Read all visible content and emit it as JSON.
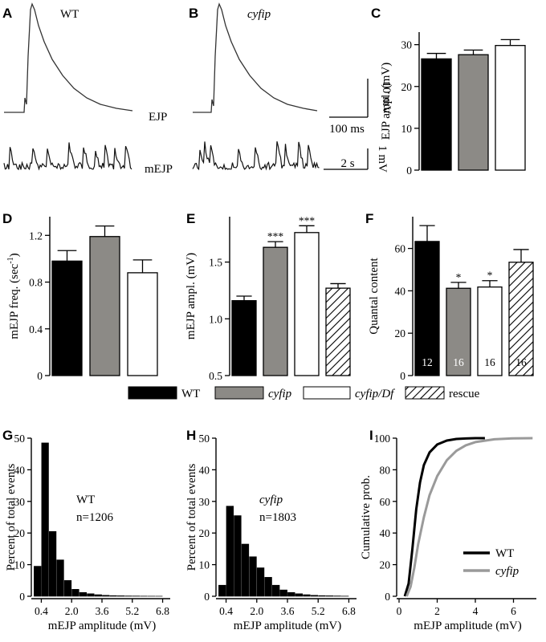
{
  "panel_labels": {
    "A": "A",
    "B": "B",
    "C": "C",
    "D": "D",
    "E": "E",
    "F": "F",
    "G": "G",
    "H": "H",
    "I": "I"
  },
  "colors": {
    "WT": "#000000",
    "cyfip": "#8c8a86",
    "cyfip_Df": "#ffffff",
    "rescue": "hatched",
    "wt_line": "#000000",
    "cyfip_line": "#9a9a9a"
  },
  "traces": {
    "A_label": "WT",
    "B_label": "cyfip",
    "ejp_label": "EJP",
    "mejp_label": "mEJP",
    "scalebar_ejp": {
      "voltage": "10 mV",
      "time": "100 ms"
    },
    "scalebar_mejp": {
      "voltage": "1 mV",
      "time": "2 s"
    }
  },
  "legend": {
    "items": [
      "WT",
      "cyfip",
      "cyfip/Df",
      "rescue"
    ]
  },
  "chart_data": [
    {
      "id": "C",
      "type": "bar",
      "categories": [
        "WT",
        "cyfip",
        "cyfip/Df"
      ],
      "values": [
        26.6,
        27.6,
        29.8
      ],
      "errors": [
        1.3,
        1.1,
        1.4
      ],
      "fills": [
        "#000000",
        "#8c8a86",
        "#ffffff"
      ],
      "ylabel": "EJP ampl. (mV)",
      "ylim": [
        0,
        33
      ],
      "yticks": [
        0,
        10,
        20,
        30
      ],
      "ytick_labels": [
        "0",
        "10",
        "20",
        "30"
      ]
    },
    {
      "id": "D",
      "type": "bar",
      "categories": [
        "WT",
        "cyfip",
        "cyfip/Df"
      ],
      "values": [
        0.98,
        1.19,
        0.88
      ],
      "errors": [
        0.09,
        0.09,
        0.11
      ],
      "fills": [
        "#000000",
        "#8c8a86",
        "#ffffff"
      ],
      "ylabel": "mEJP freq. (sec-1)",
      "ylim": [
        0,
        1.36
      ],
      "yticks": [
        0,
        0.4,
        0.8,
        1.2
      ],
      "ytick_labels": [
        "0",
        "0.4",
        "0.8",
        "1.2"
      ]
    },
    {
      "id": "E",
      "type": "bar",
      "categories": [
        "WT",
        "cyfip",
        "cyfip/Df",
        "rescue"
      ],
      "values": [
        1.16,
        1.63,
        1.76,
        1.27
      ],
      "errors": [
        0.04,
        0.05,
        0.06,
        0.04
      ],
      "fills": [
        "#000000",
        "#8c8a86",
        "#ffffff",
        "hatched"
      ],
      "significance": [
        "",
        "***",
        "***",
        ""
      ],
      "ylabel": "mEJP ampl. (mV)",
      "ylim": [
        0.5,
        1.9
      ],
      "yticks": [
        0.5,
        1.0,
        1.5
      ],
      "ytick_labels": [
        "0.5",
        "1.0",
        "1.5"
      ]
    },
    {
      "id": "F",
      "type": "bar",
      "categories": [
        "WT",
        "cyfip",
        "cyfip/Df",
        "rescue"
      ],
      "values": [
        63.3,
        41.2,
        41.8,
        53.5
      ],
      "errors": [
        7.5,
        2.8,
        3.0,
        6.0
      ],
      "fills": [
        "#000000",
        "#8c8a86",
        "#ffffff",
        "hatched"
      ],
      "significance": [
        "",
        "*",
        "*",
        ""
      ],
      "n_labels": [
        "12",
        "16",
        "16",
        "16"
      ],
      "ylabel": "Quantal content",
      "ylim": [
        0,
        75
      ],
      "yticks": [
        0,
        20,
        40,
        60
      ],
      "ytick_labels": [
        "0",
        "20",
        "40",
        "60"
      ]
    },
    {
      "id": "G",
      "type": "histogram",
      "series_label": "WT",
      "n_text": "n=1206",
      "bin_start": 0.0,
      "bin_width": 0.4,
      "values": [
        9.5,
        48.5,
        20.5,
        11.5,
        5.0,
        2.2,
        1.2,
        0.8,
        0.5,
        0.3,
        0.2,
        0.15,
        0.1,
        0.08,
        0.05,
        0.03,
        0.02
      ],
      "xlabel": "mEJP amplitude (mV)",
      "ylabel": "Percent of total events",
      "xlim": [
        0.0,
        7.2
      ],
      "ylim": [
        0,
        50
      ],
      "xticks": [
        0.4,
        2.0,
        3.6,
        5.2,
        6.8
      ],
      "xtick_labels": [
        "0.4",
        "2.0",
        "3.6",
        "5.2",
        "6.8"
      ],
      "yticks": [
        0,
        10,
        20,
        30,
        40,
        50
      ],
      "ytick_labels": [
        "0",
        "10",
        "20",
        "30",
        "40",
        "50"
      ]
    },
    {
      "id": "H",
      "type": "histogram",
      "series_label": "cyfip",
      "n_text": "n=1803",
      "bin_start": 0.0,
      "bin_width": 0.4,
      "values": [
        3.5,
        28.5,
        25.5,
        16.5,
        12.5,
        9.0,
        6.0,
        3.5,
        2.0,
        1.2,
        0.8,
        0.5,
        0.3,
        0.2,
        0.15,
        0.1,
        0.05
      ],
      "xlabel": "mEJP amplitude (mV)",
      "ylabel": "Percent of total events",
      "xlim": [
        0.0,
        7.2
      ],
      "ylim": [
        0,
        50
      ],
      "xticks": [
        0.4,
        2.0,
        3.6,
        5.2,
        6.8
      ],
      "xtick_labels": [
        "0.4",
        "2.0",
        "3.6",
        "5.2",
        "6.8"
      ],
      "yticks": [
        0,
        10,
        20,
        30,
        40,
        50
      ],
      "ytick_labels": [
        "0",
        "10",
        "20",
        "30",
        "40",
        "50"
      ]
    },
    {
      "id": "I",
      "type": "line",
      "xlabel": "mEJP amplitude (mV)",
      "ylabel": "Cumulative prob.",
      "xlim": [
        0,
        7.2
      ],
      "ylim": [
        0,
        100
      ],
      "xticks": [
        0,
        2,
        4,
        6
      ],
      "xtick_labels": [
        "0",
        "2",
        "4",
        "6"
      ],
      "yticks": [
        0,
        20,
        40,
        60,
        80,
        100
      ],
      "ytick_labels": [
        "0",
        "20",
        "40",
        "60",
        "80",
        "100"
      ],
      "legend_position": "bottom-right",
      "series": [
        {
          "name": "WT",
          "color": "#000000",
          "x": [
            0.3,
            0.5,
            0.7,
            0.9,
            1.1,
            1.3,
            1.6,
            2.0,
            2.5,
            3.0,
            3.5,
            4.0,
            4.5
          ],
          "y": [
            0,
            8,
            30,
            55,
            72,
            83,
            91,
            96,
            98.5,
            99.5,
            99.8,
            100,
            100
          ]
        },
        {
          "name": "cyfip",
          "color": "#9a9a9a",
          "x": [
            0.4,
            0.6,
            0.8,
            1.0,
            1.3,
            1.6,
            2.0,
            2.5,
            3.0,
            3.5,
            4.0,
            5.0,
            6.0,
            7.0
          ],
          "y": [
            0,
            6,
            18,
            33,
            50,
            64,
            76,
            86,
            92,
            95.5,
            97.5,
            99.3,
            99.9,
            100
          ]
        }
      ]
    }
  ]
}
